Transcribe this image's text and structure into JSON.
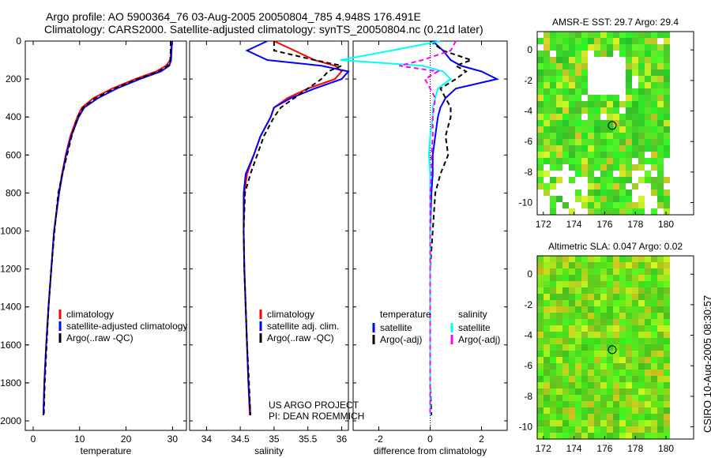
{
  "title_line1": "Argo profile: AO 5900364_76 03-Aug-2005 20050804_785 4.948S 176.491E",
  "title_line2": "Climatology: CARS2000. Satellite-adjusted climatology: synTS_20050804.nc (0.21d later)",
  "credit": "CSIRO 10-Aug-2005 08:30:57",
  "project": "US ARGO PROJECT",
  "pi": "PI: DEAN ROEMMICH",
  "colors": {
    "clim": "#ff0000",
    "sat": "#0000ff",
    "argo": "#000000",
    "sal_sat": "#00ffff",
    "sal_argo": "#ff00ff"
  },
  "chart_data": [
    {
      "type": "line",
      "xlabel": "temperature",
      "xlim": [
        -1.7,
        33
      ],
      "ylim": [
        0,
        2050
      ],
      "xticks": [
        0,
        10,
        20,
        30
      ],
      "yticks": [
        0,
        200,
        400,
        600,
        800,
        1000,
        1200,
        1400,
        1600,
        1800,
        2000
      ],
      "legend": [
        "climatology",
        "satellite-adjusted climatology",
        "Argo(..raw -QC)"
      ],
      "depth": [
        0,
        50,
        100,
        130,
        160,
        200,
        250,
        300,
        350,
        400,
        500,
        600,
        700,
        800,
        1000,
        1200,
        1400,
        1600,
        1800,
        1970
      ],
      "series": [
        {
          "name": "climatology",
          "values": [
            29.8,
            29.7,
            29.5,
            28.6,
            26.5,
            22,
            17,
            13,
            10.5,
            9.5,
            8,
            7,
            6.2,
            5.5,
            4.5,
            3.9,
            3.3,
            2.8,
            2.4,
            2.2
          ]
        },
        {
          "name": "satellite-adjusted climatology",
          "values": [
            29.9,
            29.8,
            29.7,
            29.3,
            27.5,
            23,
            18,
            14,
            11,
            9.8,
            8.2,
            7.1,
            6.3,
            5.6,
            4.5,
            3.9,
            3.3,
            2.8,
            2.4,
            2.2
          ]
        },
        {
          "name": "Argo(..raw -QC)",
          "values": [
            29.6,
            29.6,
            29.5,
            29,
            27,
            22.5,
            17.5,
            13.5,
            10.8,
            9.6,
            8.3,
            7.3,
            6.3,
            5.4,
            4.6,
            3.9,
            3.3,
            2.9,
            2.5,
            2.3
          ]
        }
      ]
    },
    {
      "type": "line",
      "xlabel": "salinity",
      "xlim": [
        33.75,
        36.1
      ],
      "ylim": [
        0,
        2050
      ],
      "xticks": [
        34,
        34.5,
        35,
        35.5,
        36
      ],
      "xticklabels": [
        "34",
        "34.5",
        "35",
        "35.5",
        "36"
      ],
      "legend": [
        "climatology",
        "satellite adj. clim.",
        "Argo(..raw -QC)"
      ],
      "depth": [
        0,
        50,
        100,
        130,
        160,
        200,
        250,
        300,
        350,
        400,
        500,
        600,
        700,
        800,
        1000,
        1200,
        1400,
        1600,
        1800,
        1970
      ],
      "series": [
        {
          "name": "climatology",
          "values": [
            35.0,
            35.3,
            35.6,
            35.9,
            36.0,
            35.9,
            35.5,
            35.2,
            35.0,
            34.95,
            34.8,
            34.7,
            34.6,
            34.56,
            34.55,
            34.56,
            34.58,
            34.6,
            34.62,
            34.64
          ]
        },
        {
          "name": "satellite adj. clim.",
          "values": [
            34.9,
            34.6,
            34.9,
            35.7,
            36.1,
            36.0,
            35.6,
            35.25,
            35.0,
            34.95,
            34.8,
            34.7,
            34.58,
            34.55,
            34.55,
            34.56,
            34.58,
            34.6,
            34.62,
            34.65
          ]
        },
        {
          "name": "Argo(..raw -QC)",
          "values": [
            35.0,
            35.0,
            35.6,
            36.0,
            35.8,
            35.7,
            35.5,
            35.3,
            35.1,
            35.0,
            34.85,
            34.75,
            34.65,
            34.57,
            34.55,
            34.56,
            34.58,
            34.6,
            34.63,
            34.65
          ]
        }
      ]
    },
    {
      "type": "line",
      "xlabel": "difference from climatology",
      "xlim": [
        -3.0,
        3.0
      ],
      "ylim": [
        0,
        2050
      ],
      "xticks": [
        -2,
        0,
        2
      ],
      "legend_temperature": "temperature",
      "legend_salinity": "salinity",
      "legend": [
        "satellite",
        "Argo(-adj)",
        "satellite",
        "Argo(-adj)"
      ],
      "depth": [
        0,
        50,
        100,
        130,
        160,
        200,
        250,
        300,
        350,
        400,
        500,
        600,
        700,
        800,
        1000,
        1200,
        1400,
        1600,
        1800,
        1970
      ],
      "series": [
        {
          "name": "temperature satellite",
          "values": [
            0.1,
            0.5,
            0.8,
            1.2,
            2.0,
            2.6,
            1.0,
            0.6,
            0.4,
            0.3,
            0.2,
            0.1,
            0.1,
            0.05,
            0,
            0,
            0,
            0,
            0,
            0
          ]
        },
        {
          "name": "temperature Argo(-adj)",
          "values": [
            0,
            0.5,
            1.6,
            1.0,
            1.4,
            1.0,
            0.4,
            0.6,
            0.8,
            0.8,
            0.6,
            0.7,
            0.4,
            0.2,
            0.1,
            0,
            0,
            0,
            0,
            0.05
          ]
        },
        {
          "name": "salinity satellite",
          "values": [
            0.4,
            -1.5,
            -3.5,
            -0.3,
            0.5,
            0.8,
            0.3,
            0.2,
            0.1,
            0.1,
            0,
            -0.05,
            0,
            0,
            0,
            0,
            0,
            0,
            0,
            0
          ]
        },
        {
          "name": "salinity Argo(-adj)",
          "values": [
            1.0,
            0.8,
            -0.3,
            -1.2,
            0.3,
            -0.2,
            0,
            0.2,
            0.15,
            0.1,
            0.1,
            0.05,
            0.05,
            0,
            0,
            0,
            0,
            0,
            0,
            0
          ]
        }
      ]
    },
    {
      "type": "heatmap",
      "title": "AMSR-E SST: 29.7 Argo: 29.4",
      "xticks": [
        172,
        174,
        176,
        178,
        180
      ],
      "yticks": [
        0,
        -2,
        -4,
        -6,
        -8,
        -10
      ],
      "xlim": [
        171.6,
        181.8
      ],
      "ylim": [
        -10.8,
        1.2
      ],
      "marker": [
        176.491,
        -4.948
      ]
    },
    {
      "type": "heatmap",
      "title": "Altimetric SLA: 0.047 Argo: 0.02",
      "xticks": [
        172,
        174,
        176,
        178,
        180
      ],
      "yticks": [
        0,
        -2,
        -4,
        -6,
        -8,
        -10
      ],
      "xlim": [
        171.6,
        181.8
      ],
      "ylim": [
        -10.8,
        1.2
      ],
      "marker": [
        176.491,
        -4.948
      ]
    }
  ]
}
